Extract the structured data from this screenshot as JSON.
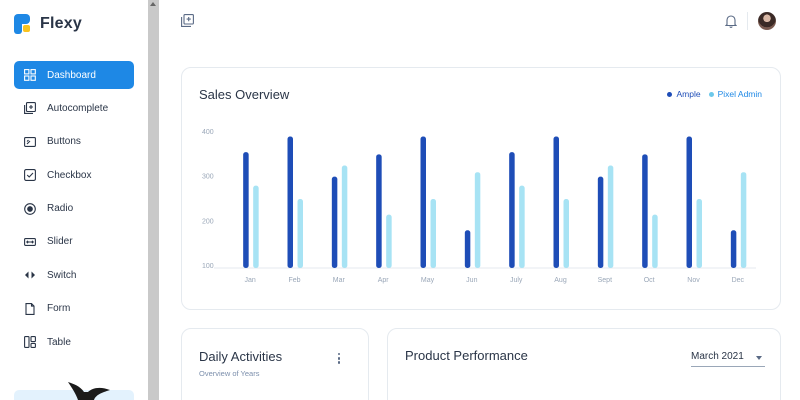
{
  "brand": {
    "name": "Flexy",
    "colors": {
      "primary": "#1e88e5",
      "accent": "#f9c31f"
    }
  },
  "sidebar": {
    "items": [
      {
        "label": "Dashboard",
        "icon": "dashboard-icon",
        "active": true
      },
      {
        "label": "Autocomplete",
        "icon": "autocomplete-icon",
        "active": false
      },
      {
        "label": "Buttons",
        "icon": "buttons-icon",
        "active": false
      },
      {
        "label": "Checkbox",
        "icon": "checkbox-icon",
        "active": false
      },
      {
        "label": "Radio",
        "icon": "radio-icon",
        "active": false
      },
      {
        "label": "Slider",
        "icon": "slider-icon",
        "active": false
      },
      {
        "label": "Switch",
        "icon": "switch-icon",
        "active": false
      },
      {
        "label": "Form",
        "icon": "form-icon",
        "active": false
      },
      {
        "label": "Table",
        "icon": "table-icon",
        "active": false
      }
    ]
  },
  "topbar": {
    "left_icon": "add-panel-icon",
    "notification_icon": "bell-icon",
    "avatar": "user-avatar"
  },
  "sales": {
    "title": "Sales Overview",
    "legend": [
      {
        "name": "Ample",
        "color": "#1e4db7"
      },
      {
        "name": "Pixel Admin",
        "color": "#a7e3f4"
      }
    ]
  },
  "chart_data": {
    "type": "bar",
    "categories": [
      "Jan",
      "Feb",
      "Mar",
      "Apr",
      "May",
      "Jun",
      "July",
      "Aug",
      "Sept",
      "Oct",
      "Nov",
      "Dec"
    ],
    "series": [
      {
        "name": "Ample",
        "color": "#1e4db7",
        "values": [
          355,
          390,
          300,
          350,
          390,
          180,
          355,
          390,
          300,
          350,
          390,
          180
        ]
      },
      {
        "name": "Pixel Admin",
        "color": "#a7e3f4",
        "values": [
          280,
          250,
          325,
          215,
          250,
          310,
          280,
          250,
          325,
          215,
          250,
          310
        ]
      }
    ],
    "yticks": [
      100,
      200,
      300,
      400
    ],
    "ylim": [
      100,
      400
    ],
    "xlabel": "",
    "ylabel": "",
    "grid": false,
    "legend": "top-right"
  },
  "daily": {
    "title": "Daily Activities",
    "subtitle": "Overview of Years",
    "menu_icon": "more-vertical-icon"
  },
  "product": {
    "title": "Product Performance",
    "month": "March 2021"
  }
}
